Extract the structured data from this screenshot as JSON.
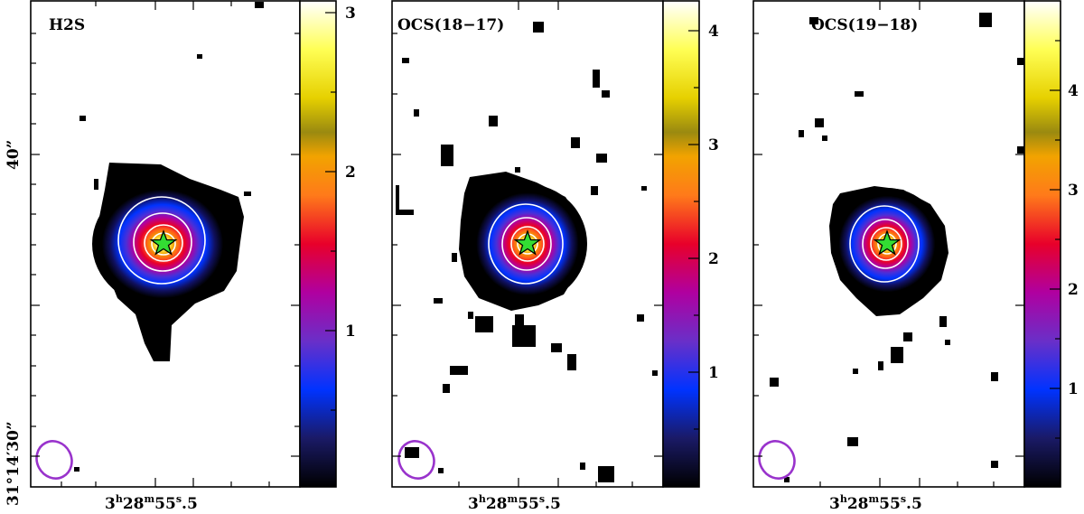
{
  "chart_data": [
    {
      "type": "heatmap",
      "title": "H2S",
      "colorbar": {
        "ticks": [
          1,
          2,
          3
        ],
        "range": [
          0,
          3.05
        ]
      },
      "x_tick_label": "3h28m55.5s",
      "y_tick_labels": [
        "40”",
        "31°14′30”"
      ],
      "contours": 4,
      "peak": 3.0,
      "source_marker": "star",
      "beam": "ellipse"
    },
    {
      "type": "heatmap",
      "title": "OCS(18−17)",
      "colorbar": {
        "ticks": [
          1,
          2,
          3,
          4
        ],
        "range": [
          0,
          4.3
        ]
      },
      "x_tick_label": "3h28m55.5s",
      "contours": 4,
      "peak": 4.3,
      "source_marker": "star",
      "beam": "ellipse"
    },
    {
      "type": "heatmap",
      "title": "OCS(19−18)",
      "colorbar": {
        "ticks": [
          1,
          2,
          3,
          4
        ],
        "range": [
          0,
          4.9
        ]
      },
      "x_tick_label": "3h28m55.5s",
      "contours": 4,
      "peak": 4.9,
      "source_marker": "star",
      "beam": "ellipse"
    }
  ],
  "labels": {
    "y_top": "40”",
    "y_bottom": "31°14′30”",
    "x_hours": "3",
    "x_h": "h",
    "x_minutes": "28",
    "x_m": "m",
    "x_seconds": "55",
    "x_s": "s",
    "x_frac": ".5"
  },
  "colors": {
    "marker_fill": "#33dd33",
    "beam_color": "#9933cc",
    "contour_color": "#ffffff"
  }
}
